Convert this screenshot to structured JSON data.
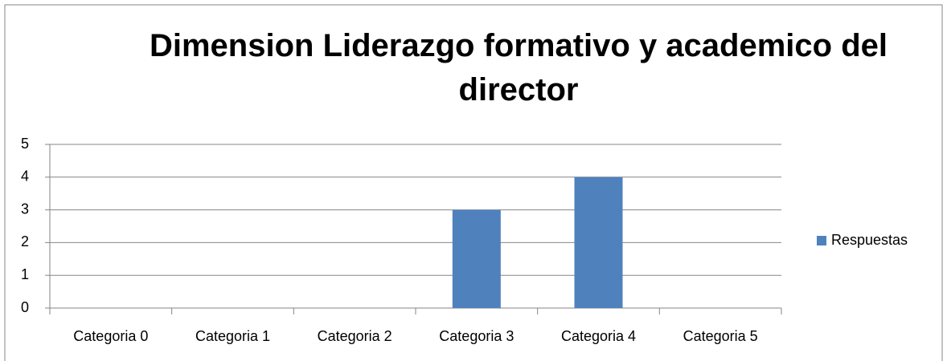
{
  "chart_data": {
    "type": "bar",
    "title": "Dimension Liderazgo formativo y academico del director",
    "categories": [
      "Categoria 0",
      "Categoria 1",
      "Categoria 2",
      "Categoria 3",
      "Categoria 4",
      "Categoria 5"
    ],
    "series": [
      {
        "name": "Respuestas",
        "color": "#4f81bd",
        "values": [
          0,
          0,
          0,
          3,
          4,
          0
        ]
      }
    ],
    "ylim": [
      0,
      5
    ],
    "yticks": [
      0,
      1,
      2,
      3,
      4,
      5
    ],
    "grid": true,
    "legend": "right"
  }
}
